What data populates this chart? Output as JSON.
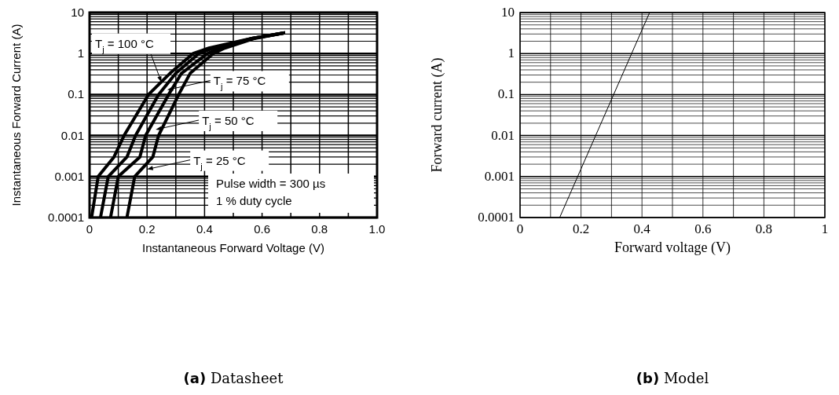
{
  "chart_data": [
    {
      "type": "line",
      "title": "(a) Datasheet",
      "xlabel": "Instantaneous Forward Voltage (V)",
      "ylabel": "Instantaneous Forward Current (A)",
      "log": "y",
      "grid": true,
      "xlim": [
        0,
        1
      ],
      "ylim": [
        0.0001,
        10
      ],
      "xticks": [
        0,
        {
          "value": 0.1,
          "label": null
        },
        0.2,
        {
          "value": 0.3,
          "label": null
        },
        0.4,
        {
          "value": 0.5,
          "label": null
        },
        0.6,
        {
          "value": 0.7,
          "label": null
        },
        0.8,
        {
          "value": 0.9,
          "label": null
        },
        {
          "value": 1,
          "label": "1.0"
        }
      ],
      "yticks": [
        0.0001,
        {
          "value": 0.0002,
          "label": null
        },
        {
          "value": 0.0003,
          "label": null
        },
        {
          "value": 0.0004,
          "label": null
        },
        {
          "value": 0.0005,
          "label": null
        },
        {
          "value": 0.0006,
          "label": null
        },
        {
          "value": 0.0007,
          "label": null
        },
        {
          "value": 0.0008,
          "label": null
        },
        {
          "value": 0.0009,
          "label": null
        },
        0.001,
        {
          "value": 0.002,
          "label": null
        },
        {
          "value": 0.003,
          "label": null
        },
        {
          "value": 0.004,
          "label": null
        },
        {
          "value": 0.005,
          "label": null
        },
        {
          "value": 0.006,
          "label": null
        },
        {
          "value": 0.007,
          "label": null
        },
        {
          "value": 0.008,
          "label": null
        },
        {
          "value": 0.009,
          "label": null
        },
        0.01,
        {
          "value": 0.02,
          "label": null
        },
        {
          "value": 0.03,
          "label": null
        },
        {
          "value": 0.04,
          "label": null
        },
        {
          "value": 0.05,
          "label": null
        },
        {
          "value": 0.06,
          "label": null
        },
        {
          "value": 0.07,
          "label": null
        },
        {
          "value": 0.08,
          "label": null
        },
        {
          "value": 0.09,
          "label": null
        },
        0.1,
        {
          "value": 0.2,
          "label": null
        },
        {
          "value": 0.3,
          "label": null
        },
        {
          "value": 0.4,
          "label": null
        },
        {
          "value": 0.5,
          "label": null
        },
        {
          "value": 0.6,
          "label": null
        },
        {
          "value": 0.7,
          "label": null
        },
        {
          "value": 0.8,
          "label": null
        },
        {
          "value": 0.9,
          "label": null
        },
        1,
        {
          "value": 2,
          "label": null
        },
        {
          "value": 3,
          "label": null
        },
        {
          "value": 4,
          "label": null
        },
        {
          "value": 5,
          "label": null
        },
        {
          "value": 6,
          "label": null
        },
        {
          "value": 7,
          "label": null
        },
        {
          "value": 8,
          "label": null
        },
        {
          "value": 9,
          "label": null
        },
        10
      ],
      "series": [
        {
          "color": "#000000",
          "x": [
            0.007,
            0.03,
            0.085,
            0.12,
            0.205,
            0.28,
            0.36,
            0.415,
            0.56,
            0.68
          ],
          "values": [
            0.0001,
            0.001,
            0.003,
            0.01,
            0.1,
            0.33,
            1,
            1.36,
            2.3,
            3.2
          ]
        },
        {
          "color": "#000000",
          "x": [
            0.038,
            0.065,
            0.13,
            0.16,
            0.24,
            0.3,
            0.38,
            0.43,
            0.56,
            0.68
          ],
          "values": [
            0.0001,
            0.001,
            0.003,
            0.01,
            0.1,
            0.33,
            1,
            1.36,
            2.3,
            3.2
          ]
        },
        {
          "color": "#000000",
          "x": [
            0.073,
            0.1,
            0.175,
            0.195,
            0.275,
            0.32,
            0.41,
            0.45,
            0.56,
            0.68
          ],
          "values": [
            0.0001,
            0.001,
            0.003,
            0.01,
            0.1,
            0.33,
            1,
            1.36,
            2.3,
            3.2
          ]
        },
        {
          "color": "#000000",
          "x": [
            0.13,
            0.157,
            0.22,
            0.24,
            0.31,
            0.35,
            0.43,
            0.47,
            0.57,
            0.68
          ],
          "values": [
            0.0001,
            0.001,
            0.003,
            0.01,
            0.1,
            0.33,
            1,
            1.36,
            2.3,
            3.2
          ]
        }
      ],
      "annotations": [
        {
          "text": "T$_{j}$ = 100 °C",
          "x": 0.25,
          "y": 0.2
        },
        {
          "text": "T$_{j}$ = 75 °C",
          "x": 0.27,
          "y": 0.13
        },
        {
          "text": "T$_{j}$ = 50 °C",
          "x": 0.23,
          "y": 0.014
        },
        {
          "text": "T$_{j}$ = 25 °C",
          "x": 0.2,
          "y": 0.0015
        },
        "Pulse width = 300 µs",
        "1 % duty cycle"
      ]
    },
    {
      "type": "line",
      "title": "(b) Model",
      "xlabel": "Forward voltage (V)",
      "ylabel": "Forward current (A)",
      "log": "y",
      "grid": true,
      "xlim": [
        0,
        1
      ],
      "ylim": [
        0.0001,
        10
      ],
      "xticks": [
        0,
        {
          "value": 0.1,
          "label": null
        },
        0.2,
        {
          "value": 0.3,
          "label": null
        },
        0.4,
        {
          "value": 0.5,
          "label": null
        },
        0.6,
        {
          "value": 0.7,
          "label": null
        },
        0.8,
        {
          "value": 0.9,
          "label": null
        },
        1
      ],
      "yticks": [
        0.0001,
        {
          "value": 0.0002,
          "label": null
        },
        {
          "value": 0.0003,
          "label": null
        },
        {
          "value": 0.0004,
          "label": null
        },
        {
          "value": 0.0005,
          "label": null
        },
        {
          "value": 0.0006,
          "label": null
        },
        {
          "value": 0.0007,
          "label": null
        },
        {
          "value": 0.0008,
          "label": null
        },
        {
          "value": 0.0009,
          "label": null
        },
        0.001,
        {
          "value": 0.002,
          "label": null
        },
        {
          "value": 0.003,
          "label": null
        },
        {
          "value": 0.004,
          "label": null
        },
        {
          "value": 0.005,
          "label": null
        },
        {
          "value": 0.006,
          "label": null
        },
        {
          "value": 0.007,
          "label": null
        },
        {
          "value": 0.008,
          "label": null
        },
        {
          "value": 0.009,
          "label": null
        },
        0.01,
        {
          "value": 0.02,
          "label": null
        },
        {
          "value": 0.03,
          "label": null
        },
        {
          "value": 0.04,
          "label": null
        },
        {
          "value": 0.05,
          "label": null
        },
        {
          "value": 0.06,
          "label": null
        },
        {
          "value": 0.07,
          "label": null
        },
        {
          "value": 0.08,
          "label": null
        },
        {
          "value": 0.09,
          "label": null
        },
        0.1,
        {
          "value": 0.2,
          "label": null
        },
        {
          "value": 0.3,
          "label": null
        },
        {
          "value": 0.4,
          "label": null
        },
        {
          "value": 0.5,
          "label": null
        },
        {
          "value": 0.6,
          "label": null
        },
        {
          "value": 0.7,
          "label": null
        },
        {
          "value": 0.8,
          "label": null
        },
        {
          "value": 0.9,
          "label": null
        },
        1,
        {
          "value": 2,
          "label": null
        },
        {
          "value": 3,
          "label": null
        },
        {
          "value": 4,
          "label": null
        },
        {
          "value": 5,
          "label": null
        },
        {
          "value": 6,
          "label": null
        },
        {
          "value": 7,
          "label": null
        },
        {
          "value": 8,
          "label": null
        },
        {
          "value": 9,
          "label": null
        },
        10
      ],
      "series": [
        {
          "color": "#000000",
          "x": [
            0.13,
            0.425
          ],
          "values": [
            0.0001,
            10
          ]
        }
      ]
    }
  ]
}
